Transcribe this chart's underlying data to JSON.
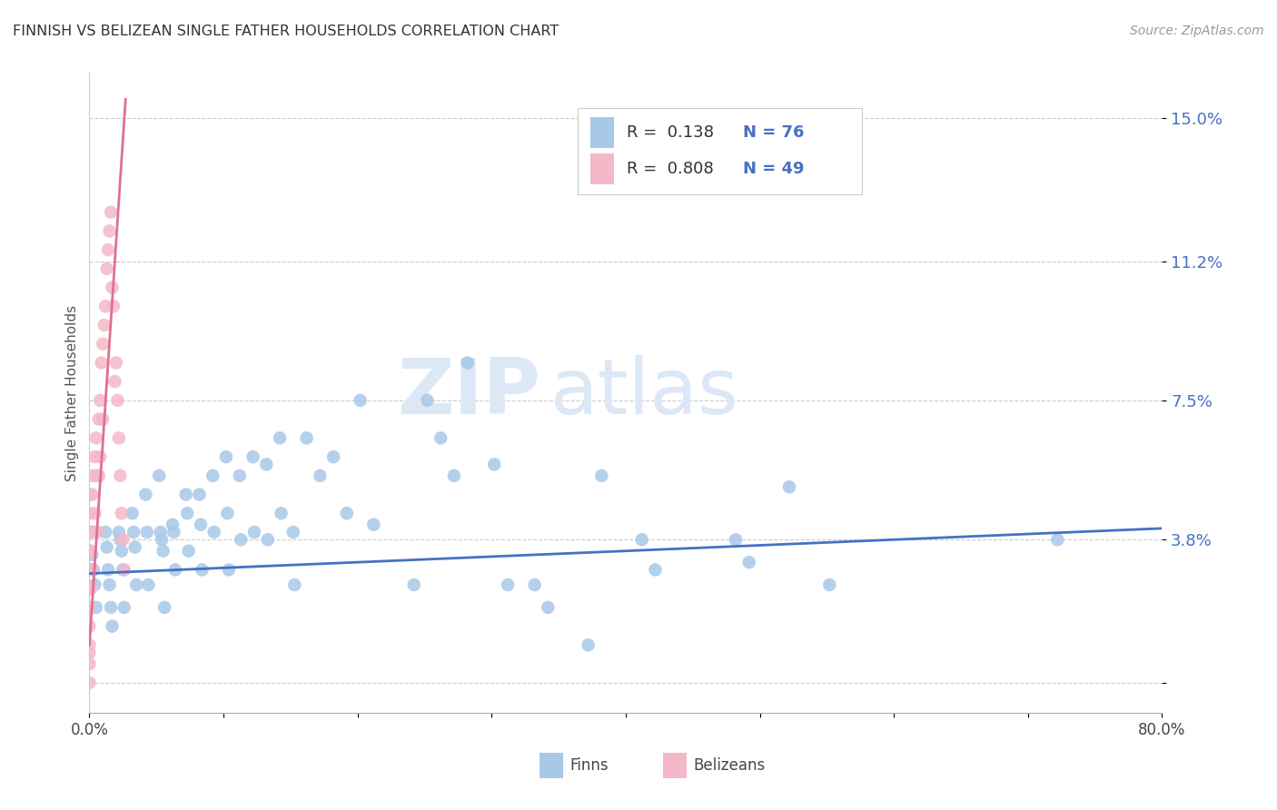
{
  "title": "FINNISH VS BELIZEAN SINGLE FATHER HOUSEHOLDS CORRELATION CHART",
  "source": "Source: ZipAtlas.com",
  "ylabel": "Single Father Households",
  "xlim": [
    0.0,
    0.8
  ],
  "ylim": [
    -0.008,
    0.162
  ],
  "yticks": [
    0.0,
    0.038,
    0.075,
    0.112,
    0.15
  ],
  "ytick_labels": [
    "",
    "3.8%",
    "7.5%",
    "11.2%",
    "15.0%"
  ],
  "xticks": [
    0.0,
    0.1,
    0.2,
    0.3,
    0.4,
    0.5,
    0.6,
    0.7,
    0.8
  ],
  "xtick_labels": [
    "0.0%",
    "",
    "",
    "",
    "",
    "",
    "",
    "",
    "80.0%"
  ],
  "color_finns": "#a8c8e8",
  "color_belizeans": "#f4b8c8",
  "color_line_finns": "#4472c4",
  "color_line_belizeans": "#e07090",
  "color_text_blue": "#4472c4",
  "color_grid": "#cccccc",
  "watermark_zip": "ZIP",
  "watermark_atlas": "atlas",
  "watermark_color": "#dce8f5",
  "finns_x": [
    0.002,
    0.003,
    0.004,
    0.005,
    0.012,
    0.013,
    0.014,
    0.015,
    0.016,
    0.017,
    0.022,
    0.023,
    0.024,
    0.025,
    0.026,
    0.032,
    0.033,
    0.034,
    0.035,
    0.042,
    0.043,
    0.044,
    0.052,
    0.053,
    0.054,
    0.055,
    0.056,
    0.062,
    0.063,
    0.064,
    0.072,
    0.073,
    0.074,
    0.082,
    0.083,
    0.084,
    0.092,
    0.093,
    0.102,
    0.103,
    0.104,
    0.112,
    0.113,
    0.122,
    0.123,
    0.132,
    0.133,
    0.142,
    0.143,
    0.152,
    0.153,
    0.162,
    0.172,
    0.182,
    0.192,
    0.202,
    0.212,
    0.242,
    0.252,
    0.262,
    0.272,
    0.282,
    0.302,
    0.312,
    0.332,
    0.342,
    0.372,
    0.382,
    0.412,
    0.422,
    0.482,
    0.492,
    0.522,
    0.552,
    0.722
  ],
  "finns_y": [
    0.034,
    0.03,
    0.026,
    0.02,
    0.04,
    0.036,
    0.03,
    0.026,
    0.02,
    0.015,
    0.04,
    0.038,
    0.035,
    0.03,
    0.02,
    0.045,
    0.04,
    0.036,
    0.026,
    0.05,
    0.04,
    0.026,
    0.055,
    0.04,
    0.038,
    0.035,
    0.02,
    0.042,
    0.04,
    0.03,
    0.05,
    0.045,
    0.035,
    0.05,
    0.042,
    0.03,
    0.055,
    0.04,
    0.06,
    0.045,
    0.03,
    0.055,
    0.038,
    0.06,
    0.04,
    0.058,
    0.038,
    0.065,
    0.045,
    0.04,
    0.026,
    0.065,
    0.055,
    0.06,
    0.045,
    0.075,
    0.042,
    0.026,
    0.075,
    0.065,
    0.055,
    0.085,
    0.058,
    0.026,
    0.026,
    0.02,
    0.01,
    0.055,
    0.038,
    0.03,
    0.038,
    0.032,
    0.052,
    0.026,
    0.038
  ],
  "belizeans_x": [
    0.0,
    0.0,
    0.0,
    0.0,
    0.0,
    0.0,
    0.0,
    0.0,
    0.0,
    0.0,
    0.0,
    0.0,
    0.001,
    0.001,
    0.001,
    0.002,
    0.002,
    0.002,
    0.003,
    0.003,
    0.004,
    0.004,
    0.005,
    0.006,
    0.006,
    0.007,
    0.007,
    0.008,
    0.008,
    0.009,
    0.01,
    0.01,
    0.011,
    0.012,
    0.013,
    0.014,
    0.015,
    0.016,
    0.017,
    0.018,
    0.019,
    0.02,
    0.021,
    0.022,
    0.023,
    0.024,
    0.025,
    0.026,
    0.0
  ],
  "belizeans_y": [
    0.0,
    0.005,
    0.01,
    0.015,
    0.02,
    0.025,
    0.03,
    0.035,
    0.04,
    0.045,
    0.05,
    0.035,
    0.04,
    0.035,
    0.025,
    0.05,
    0.04,
    0.03,
    0.055,
    0.04,
    0.06,
    0.045,
    0.065,
    0.055,
    0.04,
    0.07,
    0.055,
    0.075,
    0.06,
    0.085,
    0.09,
    0.07,
    0.095,
    0.1,
    0.11,
    0.115,
    0.12,
    0.125,
    0.105,
    0.1,
    0.08,
    0.085,
    0.075,
    0.065,
    0.055,
    0.045,
    0.038,
    0.03,
    0.008
  ],
  "finns_trend_x": [
    0.0,
    0.8
  ],
  "finns_trend_y": [
    0.029,
    0.041
  ],
  "belizeans_trend_x": [
    0.0,
    0.027
  ],
  "belizeans_trend_y": [
    0.01,
    0.155
  ]
}
